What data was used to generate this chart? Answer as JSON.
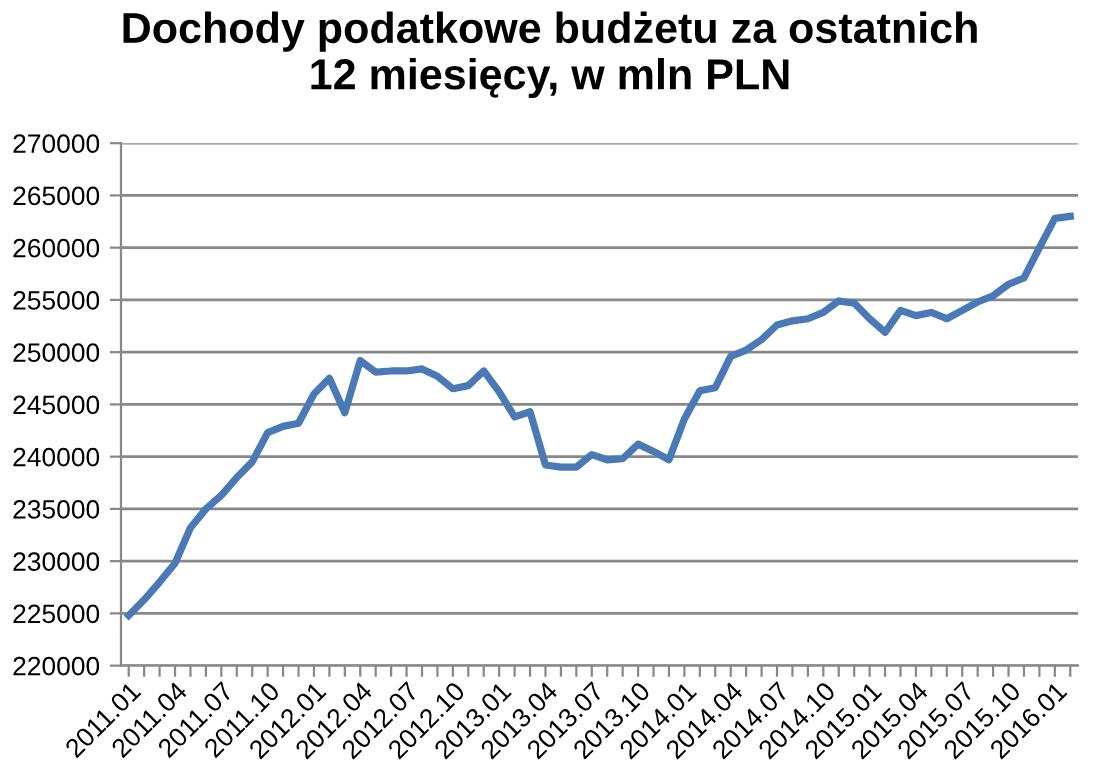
{
  "chart_data": {
    "type": "line",
    "title": "Dochody podatkowe budżetu za ostatnich\n12 miesięcy, w mln PLN",
    "categories": [
      "2011.01",
      null,
      null,
      "2011.04",
      null,
      null,
      "2011.07",
      null,
      null,
      "2011.10",
      null,
      null,
      "2012.01",
      null,
      null,
      "2012.04",
      null,
      null,
      "2012.07",
      null,
      null,
      "2012.10",
      null,
      null,
      "2013.01",
      null,
      null,
      "2013.04",
      null,
      null,
      "2013.07",
      null,
      null,
      "2013.10",
      null,
      null,
      "2014.01",
      null,
      null,
      "2014.04",
      null,
      null,
      "2014.07",
      null,
      null,
      "2014.10",
      null,
      null,
      "2015.01",
      null,
      null,
      "2015.04",
      null,
      null,
      "2015.07",
      null,
      null,
      "2015.10",
      null,
      null,
      "2016.01",
      null
    ],
    "series": [
      {
        "color": "#4a7ab5",
        "values": [
          224800,
          226300,
          228000,
          229800,
          233200,
          235000,
          236300,
          238000,
          239500,
          242300,
          242900,
          243200,
          246000,
          247500,
          244200,
          249200,
          248100,
          248200,
          248200,
          248400,
          247700,
          246500,
          246800,
          248200,
          246200,
          243800,
          244300,
          239200,
          239000,
          239000,
          240200,
          239700,
          239800,
          241200,
          240500,
          239700,
          243600,
          246300,
          246600,
          249600,
          250200,
          251200,
          252600,
          253000,
          253200,
          253800,
          254900,
          254700,
          253200,
          251900,
          254000,
          253500,
          253800,
          253200,
          254000,
          254800,
          255400,
          256500,
          257100,
          260000,
          262800,
          263000
        ]
      }
    ],
    "ylim": [
      220000,
      270000
    ],
    "yticks": [
      220000,
      225000,
      230000,
      235000,
      240000,
      245000,
      250000,
      255000,
      260000,
      265000,
      270000
    ],
    "grid": "y",
    "legend": false,
    "marker": "none",
    "line_style": "solid"
  }
}
